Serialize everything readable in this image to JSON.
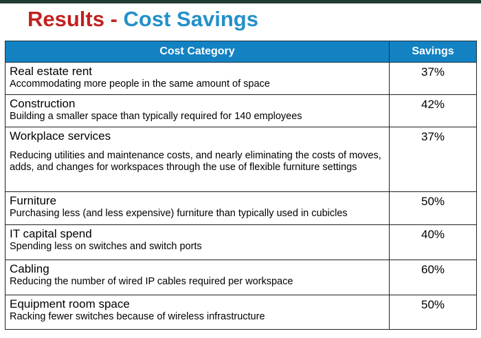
{
  "title": {
    "part1": "Results",
    "separator": " - ",
    "part2": "Cost Savings"
  },
  "colors": {
    "title_red": "#c0211f",
    "title_blue": "#2490c8",
    "header_bg": "#1282c3",
    "top_bar": "#1f3d34"
  },
  "table": {
    "headers": {
      "category": "Cost Category",
      "savings": "Savings"
    },
    "rows": [
      {
        "category": "Real estate rent",
        "description": "Accommodating more people in the same amount of space",
        "savings": "37%"
      },
      {
        "category": "Construction",
        "description": "Building a smaller space than typically required for 140 employees",
        "savings": "42%"
      },
      {
        "category": "Workplace services",
        "description": "Reducing utilities and maintenance costs, and nearly eliminating the costs of moves, adds, and changes for workspaces through the use of flexible furniture settings",
        "savings": "37%"
      },
      {
        "category": "Furniture",
        "description": "Purchasing less (and less expensive) furniture than typically used in cubicles",
        "savings": "50%"
      },
      {
        "category": "IT capital spend",
        "description": "Spending less on switches and switch ports",
        "savings": "40%"
      },
      {
        "category": "Cabling",
        "description": "Reducing the number of wired IP cables required per workspace",
        "savings": "60%"
      },
      {
        "category": "Equipment room space",
        "description": "Racking fewer switches because of wireless infrastructure",
        "savings": "50%"
      }
    ]
  }
}
